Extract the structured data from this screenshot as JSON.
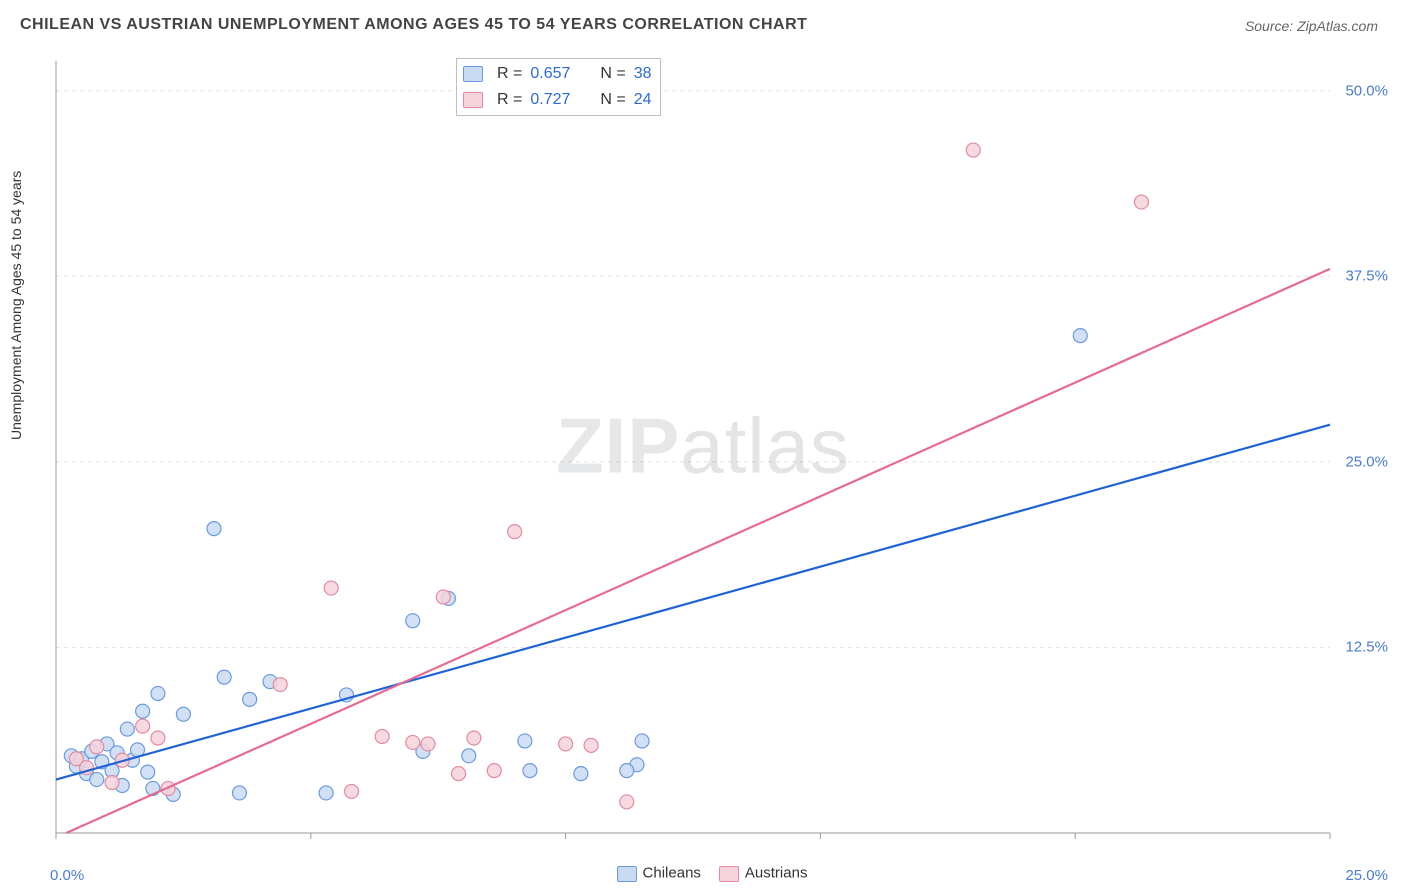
{
  "title": "CHILEAN VS AUSTRIAN UNEMPLOYMENT AMONG AGES 45 TO 54 YEARS CORRELATION CHART",
  "source_prefix": "Source: ",
  "source_name": "ZipAtlas.com",
  "y_axis_label": "Unemployment Among Ages 45 to 54 years",
  "watermark_bold": "ZIP",
  "watermark_light": "atlas",
  "chart": {
    "type": "scatter",
    "xlim": [
      0,
      25
    ],
    "ylim": [
      0,
      52
    ],
    "y_ticks": [
      12.5,
      25.0,
      37.5,
      50.0
    ],
    "y_tick_labels": [
      "12.5%",
      "25.0%",
      "37.5%",
      "50.0%"
    ],
    "x_tick_positions": [
      0,
      5,
      10,
      15,
      20,
      25
    ],
    "x_min_label": "0.0%",
    "x_max_label": "25.0%",
    "background_color": "#ffffff",
    "grid_color": "#e2e2e2",
    "axis_color": "#999999",
    "tick_label_color": "#4a7bd0",
    "marker_radius": 7,
    "marker_stroke_width": 1.2,
    "line_width": 2.2
  },
  "series": [
    {
      "name": "Chileans",
      "fill": "#c9dbf3",
      "stroke": "#6a9be0",
      "line_color": "#1f63d6",
      "R_label": "R =",
      "R": "0.657",
      "N_label": "N =",
      "N": "38",
      "trend": {
        "x1": 0,
        "y1": 3.6,
        "x2": 25,
        "y2": 27.5
      },
      "points": [
        [
          0.3,
          5.2
        ],
        [
          0.4,
          4.5
        ],
        [
          0.5,
          5.0
        ],
        [
          0.6,
          4.0
        ],
        [
          0.7,
          5.5
        ],
        [
          0.8,
          3.6
        ],
        [
          0.9,
          4.8
        ],
        [
          1.0,
          6.0
        ],
        [
          1.1,
          4.2
        ],
        [
          1.2,
          5.4
        ],
        [
          1.3,
          3.2
        ],
        [
          1.4,
          7.0
        ],
        [
          1.5,
          4.9
        ],
        [
          1.6,
          5.6
        ],
        [
          1.7,
          8.2
        ],
        [
          1.8,
          4.1
        ],
        [
          1.9,
          3.0
        ],
        [
          2.0,
          9.4
        ],
        [
          2.3,
          2.6
        ],
        [
          2.5,
          8.0
        ],
        [
          3.1,
          20.5
        ],
        [
          3.3,
          10.5
        ],
        [
          3.6,
          2.7
        ],
        [
          3.8,
          9.0
        ],
        [
          4.2,
          10.2
        ],
        [
          5.3,
          2.7
        ],
        [
          5.7,
          9.3
        ],
        [
          7.0,
          14.3
        ],
        [
          7.2,
          5.5
        ],
        [
          7.7,
          15.8
        ],
        [
          8.1,
          5.2
        ],
        [
          9.2,
          6.2
        ],
        [
          9.3,
          4.2
        ],
        [
          10.3,
          4.0
        ],
        [
          11.4,
          4.6
        ],
        [
          11.5,
          6.2
        ],
        [
          20.1,
          33.5
        ],
        [
          11.2,
          4.2
        ]
      ]
    },
    {
      "name": "Austrians",
      "fill": "#f6d2da",
      "stroke": "#e48aa2",
      "line_color": "#e76a8f",
      "R_label": "R =",
      "R": "0.727",
      "N_label": "N =",
      "N": "24",
      "trend": {
        "x1": 0.2,
        "y1": 0,
        "x2": 25,
        "y2": 38.0
      },
      "points": [
        [
          0.4,
          5.0
        ],
        [
          0.6,
          4.4
        ],
        [
          0.8,
          5.8
        ],
        [
          1.1,
          3.4
        ],
        [
          1.3,
          4.9
        ],
        [
          1.7,
          7.2
        ],
        [
          2.0,
          6.4
        ],
        [
          2.2,
          3.0
        ],
        [
          4.4,
          10.0
        ],
        [
          5.4,
          16.5
        ],
        [
          5.8,
          2.8
        ],
        [
          6.4,
          6.5
        ],
        [
          7.3,
          6.0
        ],
        [
          7.6,
          15.9
        ],
        [
          7.9,
          4.0
        ],
        [
          8.2,
          6.4
        ],
        [
          8.6,
          4.2
        ],
        [
          9.0,
          20.3
        ],
        [
          10.0,
          6.0
        ],
        [
          10.5,
          5.9
        ],
        [
          11.2,
          2.1
        ],
        [
          18.0,
          46.0
        ],
        [
          21.3,
          42.5
        ],
        [
          7.0,
          6.1
        ]
      ]
    }
  ],
  "bottom_legend": [
    {
      "label": "Chileans",
      "fill": "#c9dbf3",
      "stroke": "#6a9be0"
    },
    {
      "label": "Austrians",
      "fill": "#f6d2da",
      "stroke": "#e48aa2"
    }
  ]
}
